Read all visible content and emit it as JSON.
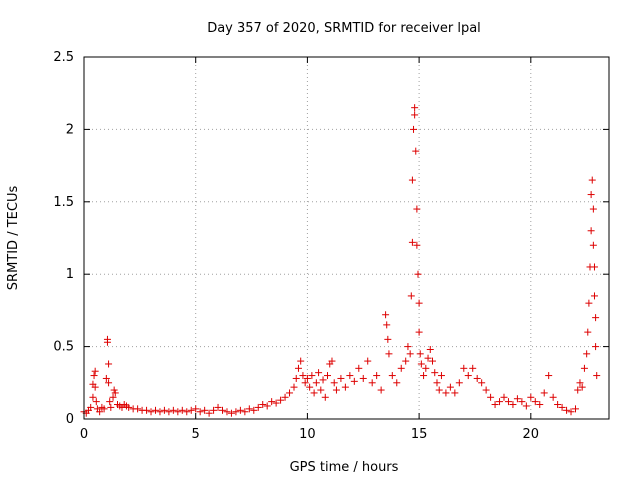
{
  "chart_data": {
    "type": "scatter",
    "title": "Day 357 of 2020, SRMTID for receiver lpal",
    "xlabel": "GPS time / hours",
    "ylabel": "SRMTID / TECUs",
    "xlim": [
      0,
      23.5
    ],
    "ylim": [
      0,
      2.5
    ],
    "xticks": [
      0,
      5,
      10,
      15,
      20
    ],
    "xtick_labels": [
      "0",
      "5",
      "10",
      "15",
      "20"
    ],
    "yticks": [
      0,
      0.5,
      1,
      1.5,
      2,
      2.5
    ],
    "ytick_labels": [
      "0",
      "0.5",
      "1",
      "1.5",
      "2",
      "2.5"
    ],
    "grid": true,
    "marker": "+",
    "series": [
      {
        "name": "SRMTID",
        "color": "#dd0000",
        "points": [
          [
            0.0,
            0.05
          ],
          [
            0.1,
            0.04
          ],
          [
            0.2,
            0.06
          ],
          [
            0.3,
            0.08
          ],
          [
            0.4,
            0.15
          ],
          [
            0.4,
            0.24
          ],
          [
            0.45,
            0.3
          ],
          [
            0.5,
            0.33
          ],
          [
            0.5,
            0.22
          ],
          [
            0.55,
            0.12
          ],
          [
            0.6,
            0.07
          ],
          [
            0.7,
            0.05
          ],
          [
            0.8,
            0.08
          ],
          [
            0.9,
            0.07
          ],
          [
            1.0,
            0.28
          ],
          [
            1.05,
            0.53
          ],
          [
            1.05,
            0.55
          ],
          [
            1.1,
            0.38
          ],
          [
            1.1,
            0.25
          ],
          [
            1.15,
            0.12
          ],
          [
            1.2,
            0.08
          ],
          [
            1.3,
            0.15
          ],
          [
            1.35,
            0.2
          ],
          [
            1.4,
            0.18
          ],
          [
            1.5,
            0.1
          ],
          [
            1.6,
            0.09
          ],
          [
            1.7,
            0.08
          ],
          [
            1.8,
            0.1
          ],
          [
            1.9,
            0.09
          ],
          [
            2.0,
            0.08
          ],
          [
            2.2,
            0.07
          ],
          [
            2.4,
            0.07
          ],
          [
            2.6,
            0.06
          ],
          [
            2.8,
            0.06
          ],
          [
            3.0,
            0.05
          ],
          [
            3.2,
            0.06
          ],
          [
            3.4,
            0.05
          ],
          [
            3.6,
            0.06
          ],
          [
            3.8,
            0.05
          ],
          [
            4.0,
            0.06
          ],
          [
            4.2,
            0.05
          ],
          [
            4.4,
            0.06
          ],
          [
            4.6,
            0.05
          ],
          [
            4.8,
            0.06
          ],
          [
            5.0,
            0.07
          ],
          [
            5.2,
            0.05
          ],
          [
            5.4,
            0.06
          ],
          [
            5.6,
            0.04
          ],
          [
            5.8,
            0.06
          ],
          [
            6.0,
            0.08
          ],
          [
            6.2,
            0.06
          ],
          [
            6.4,
            0.05
          ],
          [
            6.6,
            0.04
          ],
          [
            6.8,
            0.05
          ],
          [
            7.0,
            0.06
          ],
          [
            7.2,
            0.05
          ],
          [
            7.4,
            0.07
          ],
          [
            7.6,
            0.06
          ],
          [
            7.8,
            0.08
          ],
          [
            8.0,
            0.1
          ],
          [
            8.2,
            0.09
          ],
          [
            8.4,
            0.12
          ],
          [
            8.6,
            0.11
          ],
          [
            8.8,
            0.13
          ],
          [
            9.0,
            0.15
          ],
          [
            9.2,
            0.18
          ],
          [
            9.4,
            0.22
          ],
          [
            9.5,
            0.28
          ],
          [
            9.6,
            0.35
          ],
          [
            9.7,
            0.4
          ],
          [
            9.8,
            0.3
          ],
          [
            9.9,
            0.25
          ],
          [
            10.0,
            0.28
          ],
          [
            10.1,
            0.22
          ],
          [
            10.2,
            0.3
          ],
          [
            10.3,
            0.18
          ],
          [
            10.4,
            0.25
          ],
          [
            10.5,
            0.32
          ],
          [
            10.6,
            0.2
          ],
          [
            10.7,
            0.27
          ],
          [
            10.8,
            0.15
          ],
          [
            10.9,
            0.3
          ],
          [
            11.0,
            0.38
          ],
          [
            11.1,
            0.4
          ],
          [
            11.2,
            0.25
          ],
          [
            11.3,
            0.2
          ],
          [
            11.5,
            0.28
          ],
          [
            11.7,
            0.22
          ],
          [
            11.9,
            0.3
          ],
          [
            12.1,
            0.26
          ],
          [
            12.3,
            0.35
          ],
          [
            12.5,
            0.28
          ],
          [
            12.7,
            0.4
          ],
          [
            12.9,
            0.25
          ],
          [
            13.1,
            0.3
          ],
          [
            13.3,
            0.2
          ],
          [
            13.5,
            0.72
          ],
          [
            13.55,
            0.65
          ],
          [
            13.6,
            0.55
          ],
          [
            13.65,
            0.45
          ],
          [
            13.8,
            0.3
          ],
          [
            14.0,
            0.25
          ],
          [
            14.2,
            0.35
          ],
          [
            14.4,
            0.4
          ],
          [
            14.5,
            0.5
          ],
          [
            14.6,
            0.45
          ],
          [
            14.65,
            0.85
          ],
          [
            14.7,
            1.22
          ],
          [
            14.7,
            1.65
          ],
          [
            14.75,
            2.0
          ],
          [
            14.8,
            2.15
          ],
          [
            14.8,
            2.1
          ],
          [
            14.85,
            1.85
          ],
          [
            14.9,
            1.45
          ],
          [
            14.9,
            1.2
          ],
          [
            14.95,
            1.0
          ],
          [
            15.0,
            0.8
          ],
          [
            15.0,
            0.6
          ],
          [
            15.05,
            0.45
          ],
          [
            15.1,
            0.38
          ],
          [
            15.2,
            0.3
          ],
          [
            15.3,
            0.35
          ],
          [
            15.4,
            0.42
          ],
          [
            15.5,
            0.48
          ],
          [
            15.6,
            0.4
          ],
          [
            15.7,
            0.32
          ],
          [
            15.8,
            0.25
          ],
          [
            15.9,
            0.2
          ],
          [
            16.0,
            0.3
          ],
          [
            16.2,
            0.18
          ],
          [
            16.4,
            0.22
          ],
          [
            16.6,
            0.18
          ],
          [
            16.8,
            0.25
          ],
          [
            17.0,
            0.35
          ],
          [
            17.2,
            0.3
          ],
          [
            17.4,
            0.35
          ],
          [
            17.6,
            0.28
          ],
          [
            17.8,
            0.25
          ],
          [
            18.0,
            0.2
          ],
          [
            18.2,
            0.15
          ],
          [
            18.4,
            0.1
          ],
          [
            18.6,
            0.12
          ],
          [
            18.8,
            0.15
          ],
          [
            19.0,
            0.12
          ],
          [
            19.2,
            0.1
          ],
          [
            19.4,
            0.14
          ],
          [
            19.6,
            0.12
          ],
          [
            19.8,
            0.09
          ],
          [
            20.0,
            0.15
          ],
          [
            20.2,
            0.12
          ],
          [
            20.4,
            0.1
          ],
          [
            20.6,
            0.18
          ],
          [
            20.8,
            0.3
          ],
          [
            21.0,
            0.15
          ],
          [
            21.2,
            0.1
          ],
          [
            21.4,
            0.08
          ],
          [
            21.6,
            0.06
          ],
          [
            21.8,
            0.05
          ],
          [
            22.0,
            0.07
          ],
          [
            22.1,
            0.2
          ],
          [
            22.2,
            0.25
          ],
          [
            22.3,
            0.22
          ],
          [
            22.4,
            0.35
          ],
          [
            22.5,
            0.45
          ],
          [
            22.55,
            0.6
          ],
          [
            22.6,
            0.8
          ],
          [
            22.65,
            1.05
          ],
          [
            22.7,
            1.3
          ],
          [
            22.7,
            1.55
          ],
          [
            22.75,
            1.65
          ],
          [
            22.8,
            1.45
          ],
          [
            22.8,
            1.2
          ],
          [
            22.85,
            1.05
          ],
          [
            22.85,
            0.85
          ],
          [
            22.9,
            0.7
          ],
          [
            22.9,
            0.5
          ],
          [
            22.95,
            0.3
          ]
        ]
      }
    ]
  }
}
